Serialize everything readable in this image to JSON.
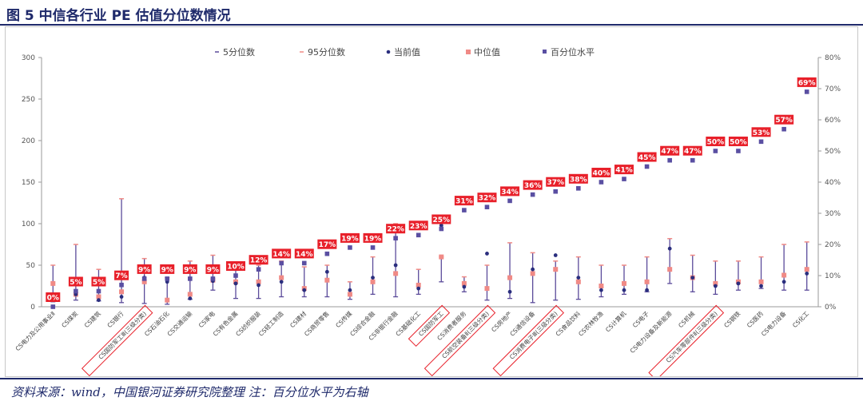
{
  "figure": {
    "title": "图 5 中信各行业 PE 估值分位数情况",
    "source": "资料来源：wind，中国银河证券研究院整理 注：百分位水平为右轴"
  },
  "chart_data": {
    "type": "scatter",
    "legend_position": "top",
    "y_left": {
      "min": 0,
      "max": 300,
      "ticks": [
        "0",
        "50",
        "100",
        "150",
        "200",
        "250",
        "300"
      ]
    },
    "y_right": {
      "min": 0,
      "max": 80,
      "ticks": [
        "0%",
        "10%",
        "20%",
        "30%",
        "40%",
        "50%",
        "60%",
        "70%",
        "80%"
      ]
    },
    "legend": [
      "5分位数",
      "95分位数",
      "当前值",
      "中位值",
      "百分位水平"
    ],
    "colors": {
      "range": "#5b4b9a",
      "current": "#2a2e7e",
      "median": "#f08a86",
      "pct": "#5a4fa2",
      "label_bg": "#e8202a",
      "highlight": "#e8202a"
    },
    "categories": [
      "CS电力及公用事业Ⅱ",
      "CS煤炭",
      "CS建筑",
      "CS银行",
      "CS国防军工Ⅲ(三级分类)",
      "CS石油石化",
      "CS交通运输",
      "CS家电",
      "CS有色金属",
      "CS纺织服装",
      "CS轻工制造",
      "CS建材",
      "CS商贸零售",
      "CS传媒",
      "CS综合金融",
      "CS非银行金融",
      "CS基础化工",
      "CS国防军工",
      "CS消费者服务",
      "CS航空装备Ⅱ(三级分类)",
      "CS房地产",
      "CS通信设备",
      "CS消费电子Ⅲ(三级分类)",
      "CS食品饮料",
      "CS农林牧渔",
      "CS计算机",
      "CS电子",
      "CS电力设备及新能源",
      "CS机械",
      "CS汽车零部件Ⅱ(三级分类)",
      "CS钢铁",
      "CS医药",
      "CS电力设备",
      "CS化工"
    ],
    "highlighted": [
      4,
      17,
      19,
      22,
      29
    ],
    "p5": [
      6,
      8,
      7,
      5,
      4,
      3,
      9,
      20,
      10,
      10,
      12,
      12,
      12,
      9,
      15,
      12,
      15,
      30,
      18,
      8,
      10,
      5,
      8,
      9,
      12,
      15,
      18,
      28,
      18,
      15,
      20,
      22,
      20,
      20
    ],
    "p95": [
      50,
      75,
      45,
      130,
      58,
      35,
      55,
      62,
      45,
      50,
      55,
      48,
      50,
      30,
      60,
      100,
      45,
      60,
      36,
      50,
      77,
      65,
      55,
      60,
      50,
      50,
      60,
      82,
      62,
      55,
      55,
      60,
      75,
      78
    ],
    "current": [
      15,
      15,
      8,
      12,
      35,
      30,
      10,
      31,
      28,
      26,
      30,
      20,
      42,
      20,
      35,
      50,
      22,
      98,
      24,
      64,
      18,
      45,
      62,
      35,
      20,
      20,
      20,
      70,
      35,
      25,
      28,
      25,
      30,
      40
    ],
    "median": [
      28,
      15,
      12,
      18,
      30,
      8,
      15,
      32,
      30,
      30,
      35,
      22,
      32,
      15,
      30,
      40,
      26,
      60,
      28,
      22,
      35,
      40,
      45,
      30,
      25,
      28,
      30,
      45,
      35,
      28,
      30,
      30,
      38,
      45
    ],
    "pct": [
      0,
      5,
      5,
      7,
      9,
      9,
      9,
      9,
      10,
      12,
      14,
      14,
      17,
      19,
      19,
      22,
      23,
      25,
      31,
      32,
      34,
      36,
      37,
      38,
      40,
      41,
      45,
      47,
      47,
      50,
      50,
      53,
      57,
      69
    ],
    "pct_labels": [
      "0%",
      "5%",
      "5%",
      "7%",
      "9%",
      "9%",
      "9%",
      "9%",
      "10%",
      "12%",
      "14%",
      "14%",
      "17%",
      "19%",
      "19%",
      "22%",
      "23%",
      "25%",
      "31%",
      "32%",
      "34%",
      "36%",
      "37%",
      "38%",
      "40%",
      "41%",
      "45%",
      "47%",
      "47%",
      "50%",
      "50%",
      "53%",
      "57%",
      "69%"
    ]
  }
}
